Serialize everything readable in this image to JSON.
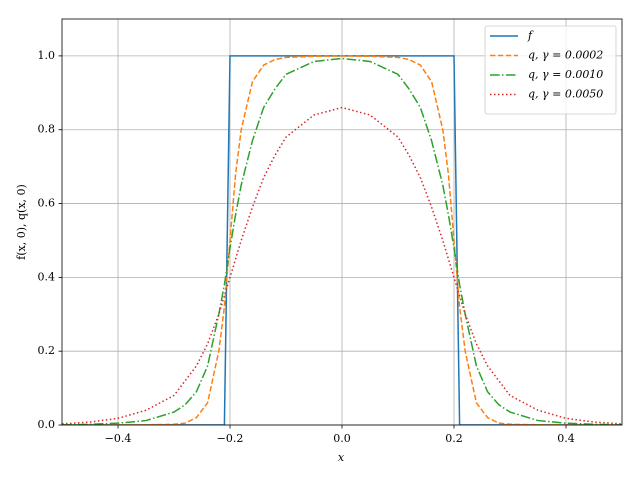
{
  "chart_data": {
    "type": "line",
    "xlabel": "x",
    "ylabel": "f(x, 0), q(x, 0)",
    "x": [
      -0.5,
      -0.45,
      -0.4,
      -0.35,
      -0.3,
      -0.28,
      -0.26,
      -0.24,
      -0.22,
      -0.21,
      -0.2,
      -0.19,
      -0.18,
      -0.16,
      -0.14,
      -0.12,
      -0.1,
      -0.05,
      0,
      0.05,
      0.1,
      0.12,
      0.14,
      0.16,
      0.18,
      0.19,
      0.2,
      0.21,
      0.22,
      0.24,
      0.26,
      0.28,
      0.3,
      0.35,
      0.4,
      0.45,
      0.5
    ],
    "series": [
      {
        "name": "f",
        "color": "#1f77b4",
        "linestyle": "solid",
        "values": [
          0,
          0,
          0,
          0,
          0,
          0,
          0,
          0,
          0,
          0,
          1,
          1,
          1,
          1,
          1,
          1,
          1,
          1,
          1,
          1,
          1,
          1,
          1,
          1,
          1,
          1,
          1,
          0,
          0,
          0,
          0,
          0,
          0,
          0,
          0,
          0,
          0
        ]
      },
      {
        "name": "q, γ = 0.0002",
        "color": "#ff7f0e",
        "linestyle": "dashed",
        "values": [
          0,
          0,
          0,
          0.0005,
          0.002,
          0.005,
          0.02,
          0.06,
          0.2,
          0.32,
          0.5,
          0.68,
          0.8,
          0.93,
          0.975,
          0.99,
          0.996,
          0.999,
          1.0,
          0.999,
          0.996,
          0.99,
          0.975,
          0.93,
          0.8,
          0.68,
          0.5,
          0.32,
          0.2,
          0.06,
          0.02,
          0.005,
          0.002,
          0.0005,
          0,
          0,
          0
        ]
      },
      {
        "name": "q, γ = 0.0010",
        "color": "#2ca02c",
        "linestyle": "dashdot",
        "values": [
          0,
          0.002,
          0.005,
          0.012,
          0.035,
          0.055,
          0.09,
          0.16,
          0.3,
          0.38,
          0.48,
          0.57,
          0.65,
          0.77,
          0.86,
          0.91,
          0.95,
          0.985,
          0.993,
          0.985,
          0.95,
          0.91,
          0.86,
          0.77,
          0.65,
          0.57,
          0.48,
          0.38,
          0.3,
          0.16,
          0.09,
          0.055,
          0.035,
          0.012,
          0.005,
          0.002,
          0
        ]
      },
      {
        "name": "q, γ = 0.0050",
        "color": "#d62728",
        "linestyle": "dotted",
        "values": [
          0.003,
          0.008,
          0.018,
          0.04,
          0.08,
          0.12,
          0.16,
          0.22,
          0.3,
          0.35,
          0.4,
          0.45,
          0.5,
          0.59,
          0.67,
          0.73,
          0.78,
          0.84,
          0.86,
          0.84,
          0.78,
          0.73,
          0.67,
          0.59,
          0.5,
          0.45,
          0.4,
          0.35,
          0.3,
          0.22,
          0.16,
          0.12,
          0.08,
          0.04,
          0.018,
          0.008,
          0.003
        ]
      }
    ],
    "xlim": [
      -0.5,
      0.5
    ],
    "xticks": [
      {
        "value": -0.4,
        "label": "−0.4"
      },
      {
        "value": -0.2,
        "label": "−0.2"
      },
      {
        "value": 0,
        "label": "0.0"
      },
      0.2,
      0.4
    ],
    "ylim": [
      0,
      1.1
    ],
    "yticks": [
      {
        "value": 0,
        "label": "0.0"
      },
      0.2,
      0.4,
      0.6,
      0.8,
      {
        "value": 1,
        "label": "1.0"
      }
    ],
    "grid": true,
    "legend": "upper right"
  }
}
